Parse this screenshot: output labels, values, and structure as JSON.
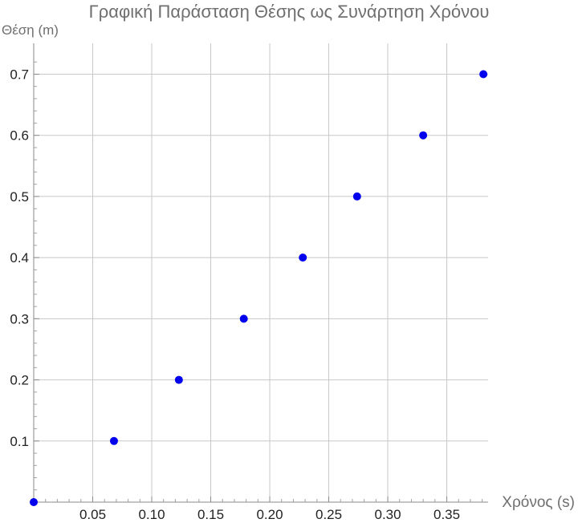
{
  "chart_data": {
    "type": "scatter",
    "title": "Γραφική Παράσταση Θέσης ως Συνάρτηση Χρόνου",
    "xlabel": "Χρόνος (s)",
    "ylabel": "Θέση (m)",
    "xlim": [
      0,
      0.385
    ],
    "ylim": [
      0,
      0.74
    ],
    "x_ticks": [
      0.05,
      0.1,
      0.15,
      0.2,
      0.25,
      0.3,
      0.35
    ],
    "x_tick_labels": [
      "0.05",
      "0.10",
      "0.15",
      "0.20",
      "0.25",
      "0.30",
      "0.35"
    ],
    "y_ticks": [
      0.1,
      0.2,
      0.3,
      0.4,
      0.5,
      0.6,
      0.7
    ],
    "y_tick_labels": [
      "0.1",
      "0.2",
      "0.3",
      "0.4",
      "0.5",
      "0.6",
      "0.7"
    ],
    "grid": true,
    "point_color": "#0000ee",
    "series": [
      {
        "x": [
          0,
          0.068,
          0.123,
          0.178,
          0.228,
          0.274,
          0.33,
          0.381
        ],
        "y": [
          0,
          0.1,
          0.2,
          0.3,
          0.4,
          0.5,
          0.6,
          0.7
        ]
      }
    ]
  }
}
